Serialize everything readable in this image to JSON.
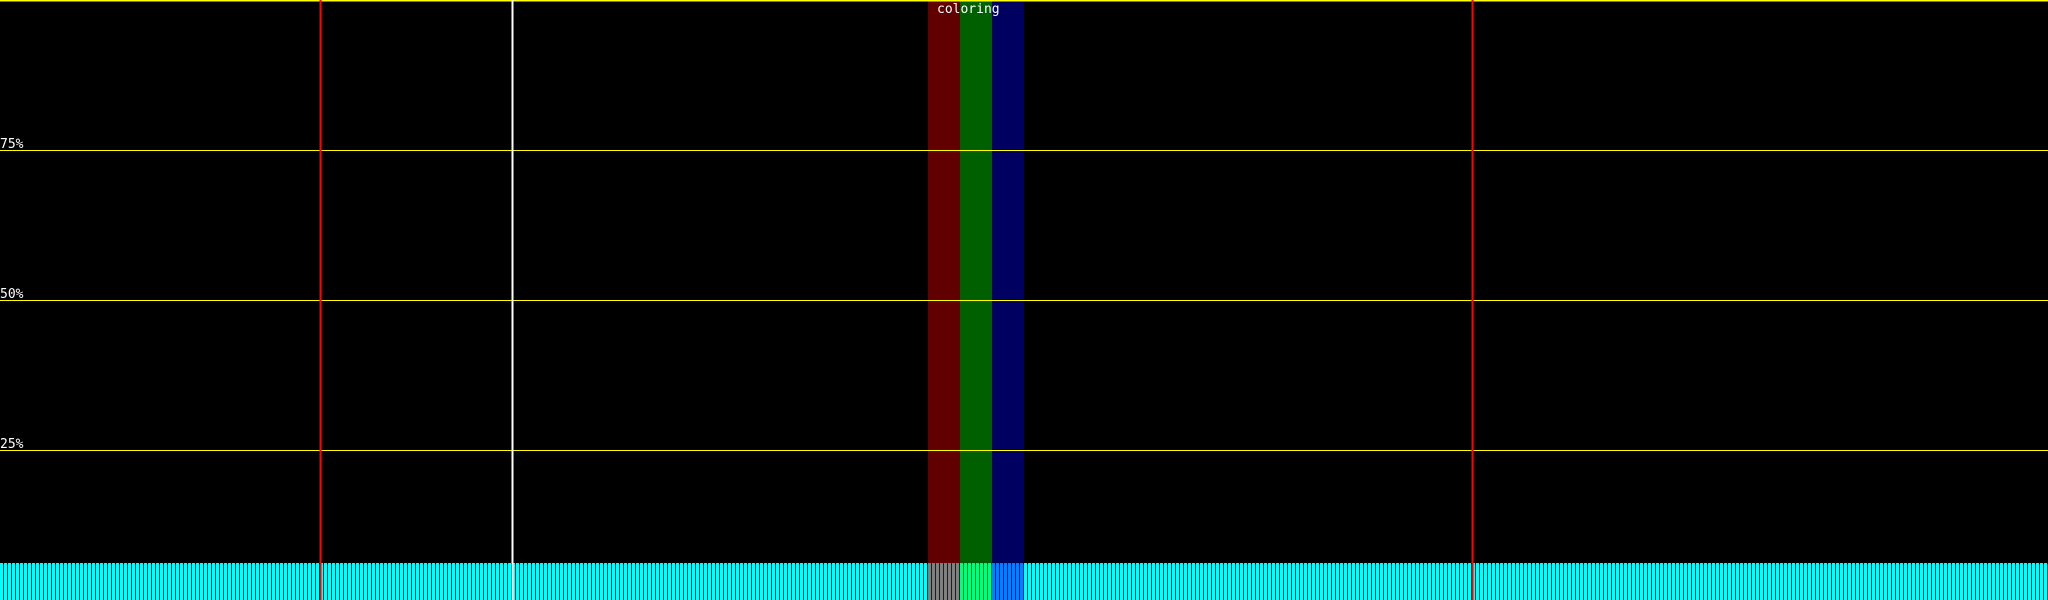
{
  "chart_data": {
    "type": "bar",
    "title": "coloring",
    "y_tick_labels": [
      "75%",
      "50%",
      "25%"
    ],
    "y_ticks": [
      75,
      50,
      25
    ],
    "ylim": [
      0,
      100
    ],
    "grid": true,
    "bar_count": 512,
    "bar_level_percent": 6.2,
    "bar_color": "#00ffff",
    "highlight_bands": [
      {
        "color": "#600000",
        "bar_color": "#808080",
        "start_bar": 232,
        "end_bar": 240
      },
      {
        "color": "#006000",
        "bar_color": "#00ff80",
        "start_bar": 240,
        "end_bar": 248
      },
      {
        "color": "#000060",
        "bar_color": "#0080ff",
        "start_bar": 248,
        "end_bar": 256
      }
    ],
    "markers": [
      {
        "color": "#ff0000",
        "bar": 80
      },
      {
        "color": "#ffffff",
        "bar": 128
      },
      {
        "color": "#ff0000",
        "bar": 368
      }
    ],
    "grid_color": "#ffff00"
  }
}
